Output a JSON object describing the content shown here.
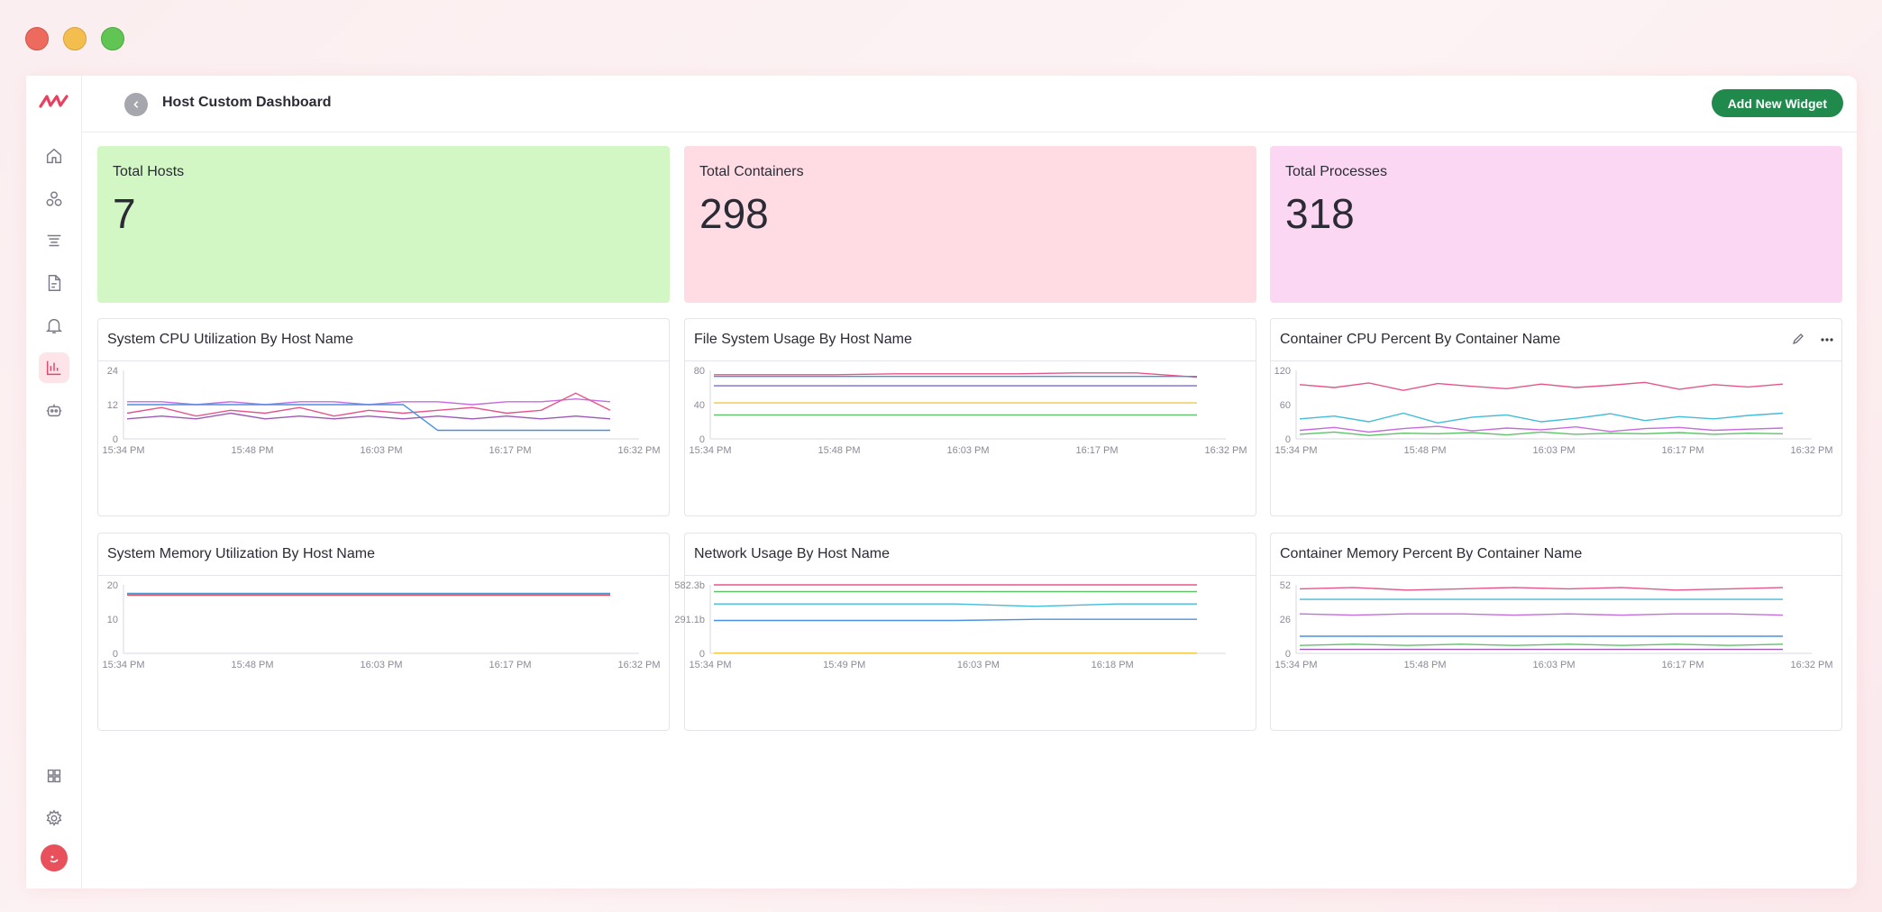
{
  "header": {
    "title": "Host Custom Dashboard",
    "add_widget_label": "Add New Widget"
  },
  "sidebar": {
    "items": [
      {
        "icon": "home-icon"
      },
      {
        "icon": "services-icon"
      },
      {
        "icon": "logs-filter-icon"
      },
      {
        "icon": "document-icon"
      },
      {
        "icon": "bell-icon"
      },
      {
        "icon": "bar-chart-icon",
        "active": true
      },
      {
        "icon": "bot-icon"
      }
    ],
    "bottom": [
      {
        "icon": "apps-grid-icon"
      },
      {
        "icon": "gear-icon"
      }
    ]
  },
  "stats": [
    {
      "label": "Total Hosts",
      "value": "7",
      "color": "#d2f7c4"
    },
    {
      "label": "Total Containers",
      "value": "298",
      "color": "#ffdbe3"
    },
    {
      "label": "Total Processes",
      "value": "318",
      "color": "#fcd7f3"
    }
  ],
  "panels": [
    {
      "title": "System CPU Utilization By Host Name"
    },
    {
      "title": "File System Usage By Host Name"
    },
    {
      "title": "Container CPU Percent By Container Name"
    },
    {
      "title": "System Memory Utilization By Host Name"
    },
    {
      "title": "Network Usage By Host Name"
    },
    {
      "title": "Container Memory Percent By Container Name"
    }
  ],
  "chart_data": [
    {
      "type": "line",
      "title": "System CPU Utilization By Host Name",
      "x_ticks": [
        "15:34 PM",
        "15:48 PM",
        "16:03 PM",
        "16:17 PM",
        "16:32 PM"
      ],
      "y_ticks": [
        "24",
        "12",
        "0"
      ],
      "ylim": [
        0,
        24
      ],
      "series": [
        {
          "color": "#c86be0",
          "values": [
            13,
            13,
            12,
            13,
            12,
            13,
            13,
            12,
            13,
            13,
            12,
            13,
            13,
            14,
            13
          ]
        },
        {
          "color": "#e6558a",
          "values": [
            9,
            11,
            8,
            10,
            9,
            11,
            8,
            10,
            9,
            10,
            11,
            9,
            10,
            16,
            10
          ]
        },
        {
          "color": "#4a90e2",
          "values": [
            12,
            12,
            12,
            12,
            12,
            12,
            12,
            12,
            12,
            3,
            3,
            3,
            3,
            3,
            3
          ]
        },
        {
          "color": "#9b59b6",
          "values": [
            7,
            8,
            7,
            9,
            7,
            8,
            7,
            8,
            7,
            8,
            7,
            8,
            7,
            8,
            7
          ]
        }
      ]
    },
    {
      "type": "line",
      "title": "File System Usage By Host Name",
      "x_ticks": [
        "15:34 PM",
        "15:48 PM",
        "16:03 PM",
        "16:17 PM",
        "16:32 PM"
      ],
      "y_ticks": [
        "80",
        "40",
        "0"
      ],
      "ylim": [
        0,
        80
      ],
      "series": [
        {
          "color": "#e6558a",
          "values": [
            75,
            75,
            75,
            76,
            76,
            76,
            77,
            77,
            72
          ]
        },
        {
          "color": "#4a90e2",
          "values": [
            73,
            73,
            73,
            73,
            73,
            73,
            73,
            73,
            73
          ]
        },
        {
          "color": "#7a6bd0",
          "values": [
            62,
            62,
            62,
            62,
            62,
            62,
            62,
            62,
            62
          ]
        },
        {
          "color": "#f2c744",
          "values": [
            42,
            42,
            42,
            42,
            42,
            42,
            42,
            42,
            42
          ]
        },
        {
          "color": "#5ec26a",
          "values": [
            28,
            28,
            28,
            28,
            28,
            28,
            28,
            28,
            28
          ]
        }
      ]
    },
    {
      "type": "line",
      "title": "Container CPU Percent By Container Name",
      "x_ticks": [
        "15:34 PM",
        "15:48 PM",
        "16:03 PM",
        "16:17 PM",
        "16:32 PM"
      ],
      "y_ticks": [
        "120",
        "60",
        "0"
      ],
      "ylim": [
        0,
        120
      ],
      "series": [
        {
          "color": "#e6558a",
          "values": [
            95,
            90,
            98,
            85,
            97,
            92,
            88,
            96,
            90,
            94,
            99,
            87,
            95,
            91,
            96
          ]
        },
        {
          "color": "#42bcd9",
          "values": [
            35,
            40,
            30,
            45,
            28,
            38,
            42,
            30,
            36,
            44,
            32,
            39,
            35,
            41,
            45
          ]
        },
        {
          "color": "#c86be0",
          "values": [
            15,
            20,
            12,
            18,
            22,
            14,
            19,
            16,
            21,
            13,
            18,
            20,
            15,
            17,
            19
          ]
        },
        {
          "color": "#5ec26a",
          "values": [
            8,
            12,
            6,
            10,
            9,
            11,
            7,
            12,
            8,
            10,
            9,
            11,
            8,
            10,
            9
          ]
        }
      ]
    },
    {
      "type": "line",
      "title": "System Memory Utilization By Host Name",
      "x_ticks": [
        "15:34 PM",
        "15:48 PM",
        "16:03 PM",
        "16:17 PM",
        "16:32 PM"
      ],
      "y_ticks": [
        "20",
        "10",
        "0"
      ],
      "ylim": [
        0,
        20
      ],
      "series": [
        {
          "color": "#4a90e2",
          "values": [
            17.5,
            17.5,
            17.5,
            17.5,
            17.5,
            17.5,
            17.5
          ]
        },
        {
          "color": "#5ec26a",
          "values": [
            17.2,
            17.2,
            17.2,
            17.2,
            17.2,
            17.2,
            17.2
          ]
        },
        {
          "color": "#e8505b",
          "values": [
            17.0,
            17.0,
            17.0,
            17.0,
            17.0,
            17.0,
            17.0
          ]
        }
      ]
    },
    {
      "type": "line",
      "title": "Network Usage By Host Name",
      "x_ticks": [
        "15:34 PM",
        "15:49 PM",
        "16:03 PM",
        "16:18 PM"
      ],
      "y_ticks": [
        "582.3b",
        "291.1b",
        "0"
      ],
      "ylim": [
        0,
        582.3
      ],
      "series": [
        {
          "color": "#e6558a",
          "values": [
            582,
            582,
            582,
            582,
            582,
            582,
            582
          ]
        },
        {
          "color": "#5ec26a",
          "values": [
            525,
            525,
            525,
            525,
            525,
            525,
            525
          ]
        },
        {
          "color": "#42bcd9",
          "values": [
            420,
            420,
            420,
            420,
            400,
            420,
            420
          ]
        },
        {
          "color": "#4a90e2",
          "values": [
            280,
            280,
            280,
            280,
            290,
            290,
            290
          ]
        },
        {
          "color": "#f2c744",
          "values": [
            2,
            2,
            2,
            2,
            2,
            2,
            2
          ]
        }
      ]
    },
    {
      "type": "line",
      "title": "Container Memory Percent By Container Name",
      "x_ticks": [
        "15:34 PM",
        "15:48 PM",
        "16:03 PM",
        "16:17 PM",
        "16:32 PM"
      ],
      "y_ticks": [
        "52",
        "26",
        "0"
      ],
      "ylim": [
        0,
        52
      ],
      "series": [
        {
          "color": "#e6558a",
          "values": [
            49,
            50,
            48,
            49,
            50,
            49,
            50,
            48,
            49,
            50
          ]
        },
        {
          "color": "#42bcd9",
          "values": [
            41,
            41,
            41,
            41,
            41,
            41,
            41,
            41,
            41,
            41
          ]
        },
        {
          "color": "#c86be0",
          "values": [
            30,
            29,
            30,
            30,
            29,
            30,
            29,
            30,
            30,
            29
          ]
        },
        {
          "color": "#4a90e2",
          "values": [
            13,
            13,
            13,
            13,
            13,
            13,
            13,
            13,
            13,
            13
          ]
        },
        {
          "color": "#5ec26a",
          "values": [
            6,
            7,
            6,
            7,
            6,
            7,
            6,
            7,
            6,
            7
          ]
        },
        {
          "color": "#9b59b6",
          "values": [
            3,
            3,
            3,
            3,
            3,
            3,
            3,
            3,
            3,
            3
          ]
        }
      ]
    }
  ]
}
